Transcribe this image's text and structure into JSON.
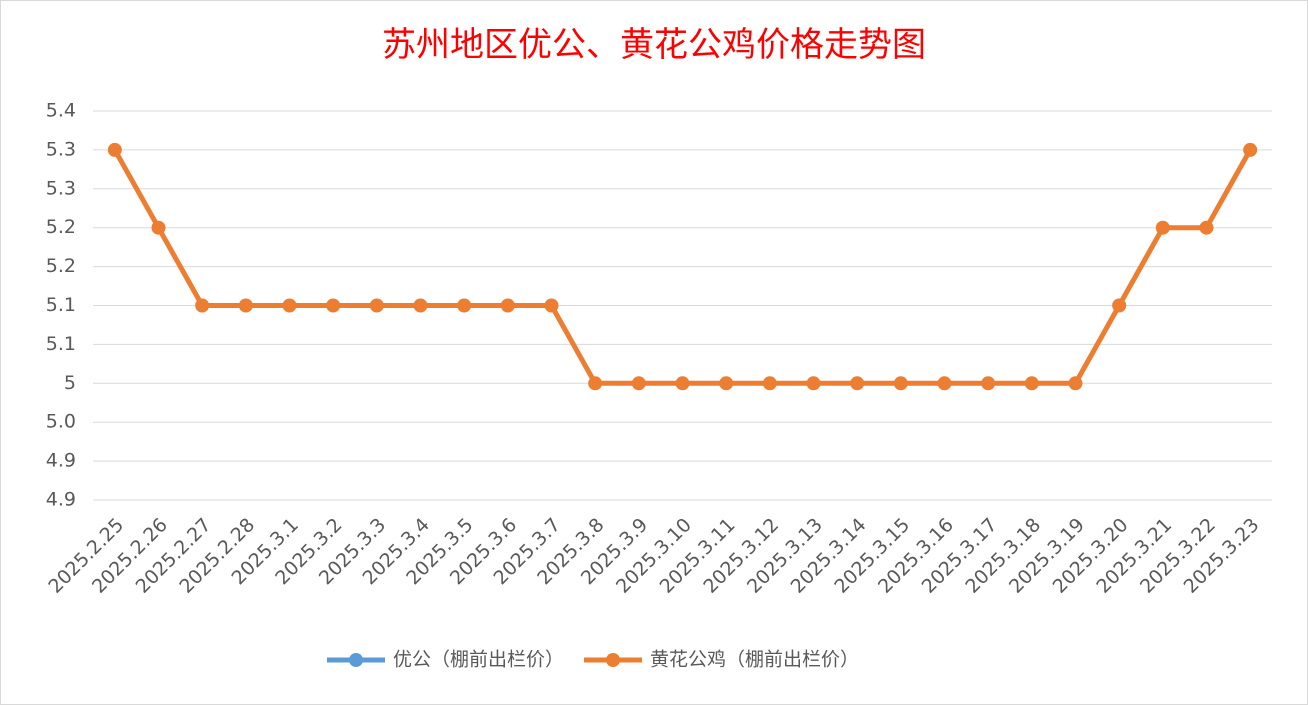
{
  "chart_data": {
    "type": "line",
    "title": "苏州地区优公、黄花公鸡价格走势图",
    "categories": [
      "2025.2.25",
      "2025.2.26",
      "2025.2.27",
      "2025.2.28",
      "2025.3.1",
      "2025.3.2",
      "2025.3.3",
      "2025.3.4",
      "2025.3.5",
      "2025.3.6",
      "2025.3.7",
      "2025.3.8",
      "2025.3.9",
      "2025.3.10",
      "2025.3.11",
      "2025.3.12",
      "2025.3.13",
      "2025.3.14",
      "2025.3.15",
      "2025.3.16",
      "2025.3.17",
      "2025.3.18",
      "2025.3.19",
      "2025.3.20",
      "2025.3.21",
      "2025.3.22",
      "2025.3.23"
    ],
    "series": [
      {
        "name": "优公（棚前出栏价）",
        "color": "#5b9bd5",
        "values": [
          null,
          null,
          null,
          null,
          null,
          null,
          null,
          null,
          null,
          null,
          null,
          null,
          null,
          null,
          null,
          null,
          null,
          null,
          null,
          null,
          null,
          null,
          null,
          null,
          null,
          null,
          null
        ]
      },
      {
        "name": "黄花公鸡（棚前出栏价）",
        "color": "#ed7d31",
        "values": [
          5.3,
          5.2,
          5.1,
          5.1,
          5.1,
          5.1,
          5.1,
          5.1,
          5.1,
          5.1,
          5.1,
          5.0,
          5.0,
          5.0,
          5.0,
          5.0,
          5.0,
          5.0,
          5.0,
          5.0,
          5.0,
          5.0,
          5.0,
          5.1,
          5.2,
          5.2,
          5.3
        ]
      }
    ],
    "ylim": [
      4.85,
      5.35
    ],
    "yticks": [
      {
        "value": 4.85,
        "label": "4.9"
      },
      4.9,
      {
        "value": 4.95,
        "label": "5.0"
      },
      5.0,
      {
        "value": 5.05,
        "label": "5.1"
      },
      5.1,
      {
        "value": 5.15,
        "label": "5.2"
      },
      5.2,
      {
        "value": 5.25,
        "label": "5.3"
      },
      5.3,
      {
        "value": 5.35,
        "label": "5.4"
      }
    ],
    "grid": true,
    "legend": "bottom"
  }
}
